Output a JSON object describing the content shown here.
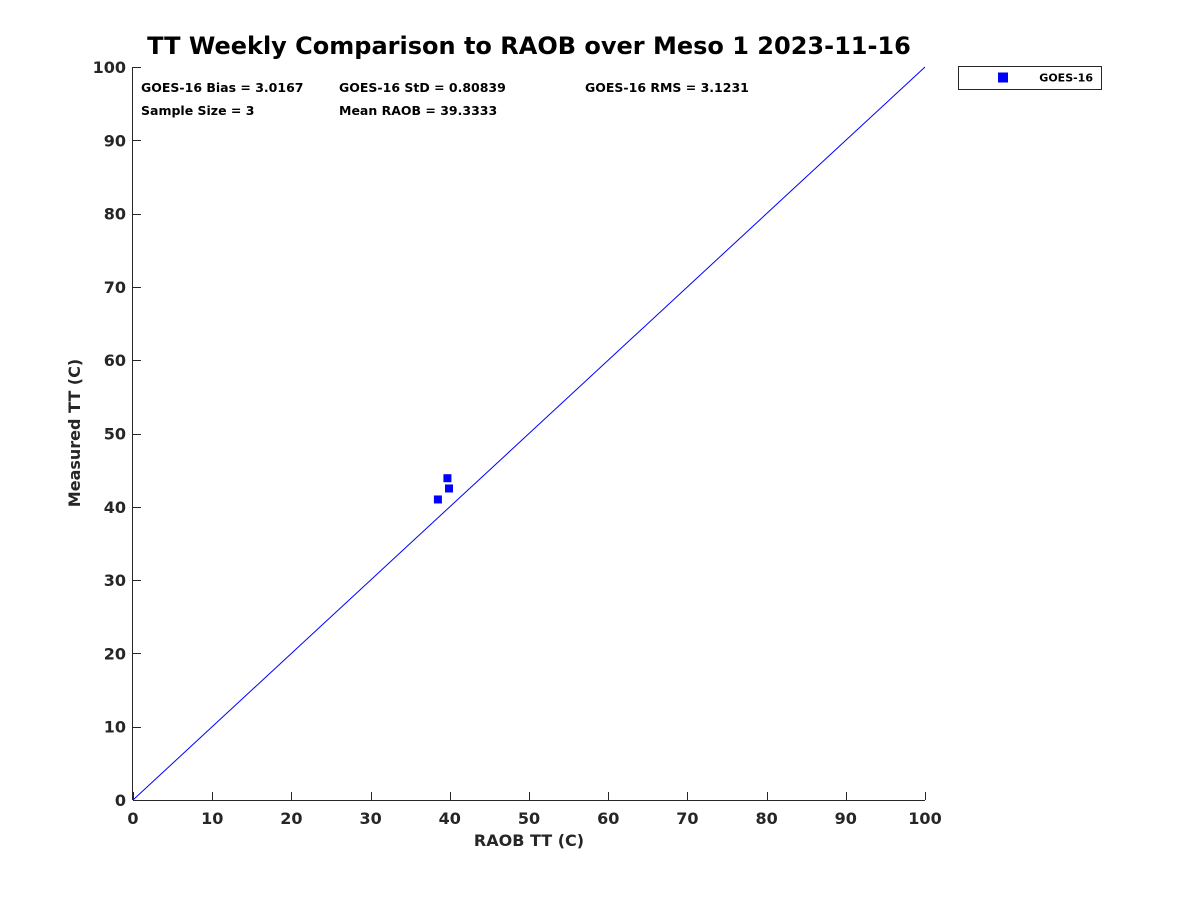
{
  "chart_data": {
    "type": "scatter",
    "title": "TT Weekly Comparison to RAOB over Meso 1 2023-11-16",
    "xlabel": "RAOB TT (C)",
    "ylabel": "Measured TT (C)",
    "xlim": [
      0,
      100
    ],
    "ylim": [
      0,
      100
    ],
    "xticks": [
      0,
      10,
      20,
      30,
      40,
      50,
      60,
      70,
      80,
      90,
      100
    ],
    "yticks": [
      0,
      10,
      20,
      30,
      40,
      50,
      60,
      70,
      80,
      90,
      100
    ],
    "xtick_labels": [
      "0",
      "10",
      "20",
      "30",
      "40",
      "50",
      "60",
      "70",
      "80",
      "90",
      "100"
    ],
    "ytick_labels": [
      "0",
      "10",
      "20",
      "30",
      "40",
      "50",
      "60",
      "70",
      "80",
      "90",
      "100"
    ],
    "grid": false,
    "legend_position": "outside-top-right",
    "reference_line": {
      "type": "one-to-one",
      "color": "#0000ff"
    },
    "series": [
      {
        "name": "GOES-16",
        "color": "#0000ff",
        "marker": "square",
        "points": [
          {
            "x": 38.5,
            "y": 41.0
          },
          {
            "x": 39.7,
            "y": 43.9
          },
          {
            "x": 39.9,
            "y": 42.5
          }
        ]
      }
    ],
    "stats": {
      "bias": "GOES-16 Bias = 3.0167",
      "std": "GOES-16 StD = 0.80839",
      "rms": "GOES-16 RMS = 3.1231",
      "sample_size": "Sample Size = 3",
      "mean_raob": "Mean RAOB = 39.3333"
    }
  }
}
